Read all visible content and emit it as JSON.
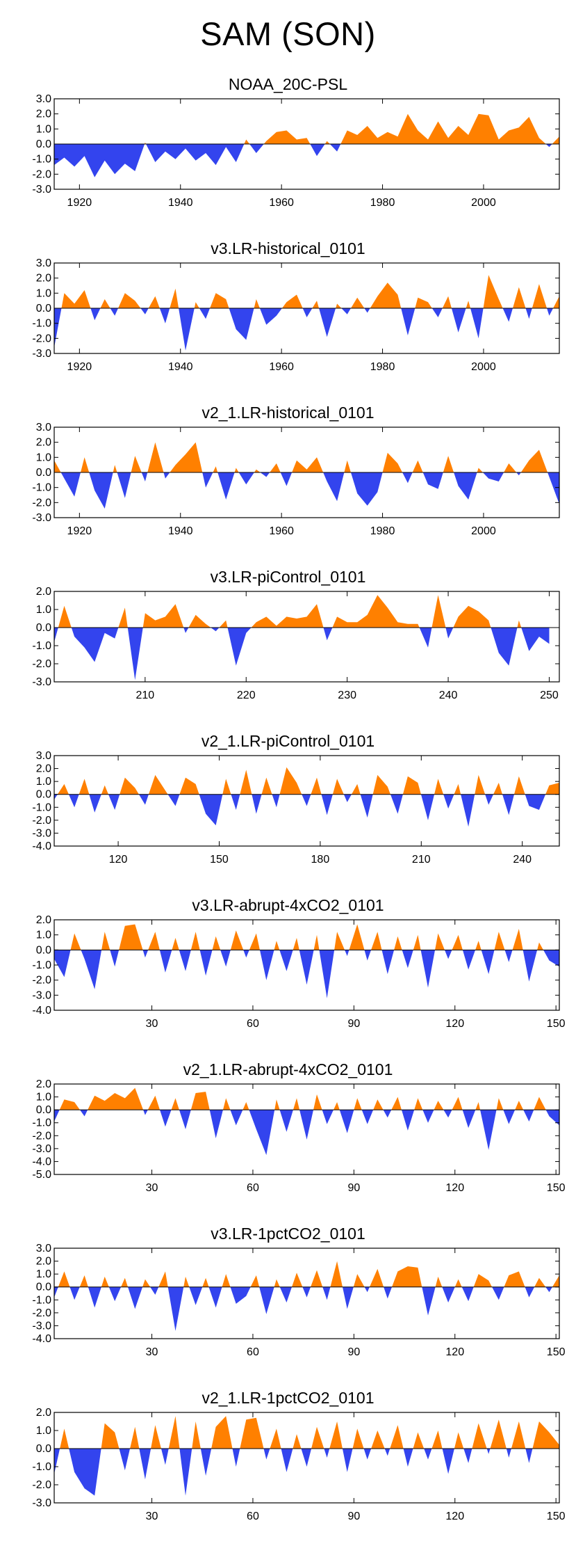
{
  "figure_title": "SAM (SON)",
  "colors": {
    "positive": "#ff8000",
    "negative": "#3344ee",
    "axis": "#000000"
  },
  "chart_data": [
    {
      "type": "area",
      "title": "NOAA_20C-PSL",
      "xlabel": "",
      "ylabel": "",
      "xlim": [
        1915,
        2015
      ],
      "ylim": [
        -3.0,
        3.0
      ],
      "yticks": [
        "3.0",
        "2.0",
        "1.0",
        "0.0",
        "-1.0",
        "-2.0",
        "-3.0"
      ],
      "xticks": [
        1920,
        1940,
        1960,
        1980,
        2000
      ],
      "x": [
        1915,
        1917,
        1919,
        1921,
        1923,
        1925,
        1927,
        1929,
        1931,
        1933,
        1935,
        1937,
        1939,
        1941,
        1943,
        1945,
        1947,
        1949,
        1951,
        1953,
        1955,
        1957,
        1959,
        1961,
        1963,
        1965,
        1967,
        1969,
        1971,
        1973,
        1975,
        1977,
        1979,
        1981,
        1983,
        1985,
        1987,
        1989,
        1991,
        1993,
        1995,
        1997,
        1999,
        2001,
        2003,
        2005,
        2007,
        2009,
        2011,
        2013,
        2015
      ],
      "values": [
        -1.4,
        -0.9,
        -1.5,
        -0.8,
        -2.2,
        -1.1,
        -2.0,
        -1.3,
        -1.8,
        0.1,
        -1.2,
        -0.5,
        -1.0,
        -0.3,
        -1.1,
        -0.6,
        -1.4,
        -0.2,
        -1.2,
        0.3,
        -0.6,
        0.2,
        0.8,
        0.9,
        0.3,
        0.4,
        -0.8,
        0.2,
        -0.5,
        0.9,
        0.6,
        1.2,
        0.4,
        0.8,
        0.5,
        2.0,
        0.9,
        0.3,
        1.5,
        0.4,
        1.2,
        0.6,
        2.0,
        1.9,
        0.3,
        0.9,
        1.1,
        1.8,
        0.4,
        -0.2,
        0.5
      ]
    },
    {
      "type": "area",
      "title": "v3.LR-historical_0101",
      "xlim": [
        1915,
        2015
      ],
      "ylim": [
        -3.0,
        3.0
      ],
      "yticks": [
        "3.0",
        "2.0",
        "1.0",
        "0.0",
        "-1.0",
        "-2.0",
        "-3.0"
      ],
      "xticks": [
        1920,
        1940,
        1960,
        1980,
        2000
      ],
      "x": [
        1915,
        1917,
        1919,
        1921,
        1923,
        1925,
        1927,
        1929,
        1931,
        1933,
        1935,
        1937,
        1939,
        1941,
        1943,
        1945,
        1947,
        1949,
        1951,
        1953,
        1955,
        1957,
        1959,
        1961,
        1963,
        1965,
        1967,
        1969,
        1971,
        1973,
        1975,
        1977,
        1979,
        1981,
        1983,
        1985,
        1987,
        1989,
        1991,
        1993,
        1995,
        1997,
        1999,
        2001,
        2003,
        2005,
        2007,
        2009,
        2011,
        2013,
        2015
      ],
      "values": [
        -2.6,
        1.0,
        0.3,
        1.2,
        -0.8,
        0.6,
        -0.5,
        1.0,
        0.5,
        -0.4,
        0.8,
        -1.0,
        1.3,
        -2.8,
        0.4,
        -0.7,
        1.0,
        0.6,
        -1.4,
        -2.1,
        0.6,
        -1.1,
        -0.5,
        0.4,
        0.9,
        -0.6,
        0.5,
        -1.9,
        0.3,
        -0.4,
        0.7,
        -0.3,
        0.8,
        1.7,
        0.9,
        -1.8,
        0.7,
        0.4,
        -0.6,
        0.8,
        -1.6,
        0.5,
        -2.0,
        2.2,
        0.6,
        -0.9,
        1.4,
        -0.7,
        1.6,
        -0.5,
        0.8
      ]
    },
    {
      "type": "area",
      "title": "v2_1.LR-historical_0101",
      "xlim": [
        1915,
        2015
      ],
      "ylim": [
        -3.0,
        3.0
      ],
      "yticks": [
        "3.0",
        "2.0",
        "1.0",
        "0.0",
        "-1.0",
        "-2.0",
        "-3.0"
      ],
      "xticks": [
        1920,
        1940,
        1960,
        1980,
        2000
      ],
      "x": [
        1915,
        1917,
        1919,
        1921,
        1923,
        1925,
        1927,
        1929,
        1931,
        1933,
        1935,
        1937,
        1939,
        1941,
        1943,
        1945,
        1947,
        1949,
        1951,
        1953,
        1955,
        1957,
        1959,
        1961,
        1963,
        1965,
        1967,
        1969,
        1971,
        1973,
        1975,
        1977,
        1979,
        1981,
        1983,
        1985,
        1987,
        1989,
        1991,
        1993,
        1995,
        1997,
        1999,
        2001,
        2003,
        2005,
        2007,
        2009,
        2011,
        2013,
        2015
      ],
      "values": [
        0.8,
        -0.4,
        -1.6,
        1.0,
        -1.2,
        -2.4,
        0.5,
        -1.7,
        1.1,
        -0.6,
        2.0,
        -0.4,
        0.5,
        1.2,
        2.0,
        -1.0,
        0.4,
        -1.8,
        0.3,
        -0.8,
        0.2,
        -0.3,
        0.6,
        -0.9,
        0.8,
        0.2,
        1.0,
        -0.6,
        -1.9,
        0.8,
        -1.4,
        -2.2,
        -1.3,
        1.3,
        0.6,
        -0.7,
        0.8,
        -0.8,
        -1.1,
        1.1,
        -0.9,
        -1.8,
        0.3,
        -0.4,
        -0.6,
        0.6,
        -0.2,
        0.8,
        1.5,
        -0.3,
        -2.1
      ]
    },
    {
      "type": "area",
      "title": "v3.LR-piControl_0101",
      "xlim": [
        201,
        251
      ],
      "ylim": [
        -3.0,
        2.0
      ],
      "yticks": [
        "2.0",
        "1.0",
        "0.0",
        "-1.0",
        "-2.0",
        "-3.0"
      ],
      "xticks": [
        210,
        220,
        230,
        240,
        250
      ],
      "x": [
        201,
        202,
        203,
        204,
        205,
        206,
        207,
        208,
        209,
        210,
        211,
        212,
        213,
        214,
        215,
        216,
        217,
        218,
        219,
        220,
        221,
        222,
        223,
        224,
        225,
        226,
        227,
        228,
        229,
        230,
        231,
        232,
        233,
        234,
        235,
        236,
        237,
        238,
        239,
        240,
        241,
        242,
        243,
        244,
        245,
        246,
        247,
        248,
        249,
        250
      ],
      "values": [
        -0.8,
        1.2,
        -0.5,
        -1.1,
        -1.9,
        -0.3,
        -0.6,
        1.1,
        -2.9,
        0.8,
        0.4,
        0.6,
        1.3,
        -0.3,
        0.7,
        0.2,
        -0.2,
        0.4,
        -2.1,
        -0.3,
        0.3,
        0.6,
        0.1,
        0.6,
        0.5,
        0.6,
        1.3,
        -0.7,
        0.6,
        0.3,
        0.3,
        0.7,
        1.8,
        1.1,
        0.3,
        0.2,
        0.2,
        -1.1,
        1.8,
        -0.6,
        0.6,
        1.2,
        0.9,
        0.4,
        -1.4,
        -2.1,
        0.4,
        -1.3,
        -0.5,
        -0.9
      ]
    },
    {
      "type": "area",
      "title": "v2_1.LR-piControl_0101",
      "xlim": [
        101,
        251
      ],
      "ylim": [
        -4.0,
        3.0
      ],
      "yticks": [
        "3.0",
        "2.0",
        "1.0",
        "0.0",
        "-1.0",
        "-2.0",
        "-3.0",
        "-4.0"
      ],
      "xticks": [
        120,
        150,
        180,
        210,
        240
      ],
      "x": [
        101,
        104,
        107,
        110,
        113,
        116,
        119,
        122,
        125,
        128,
        131,
        134,
        137,
        140,
        143,
        146,
        149,
        152,
        155,
        158,
        161,
        164,
        167,
        170,
        173,
        176,
        179,
        182,
        185,
        188,
        191,
        194,
        197,
        200,
        203,
        206,
        209,
        212,
        215,
        218,
        221,
        224,
        227,
        230,
        233,
        236,
        239,
        242,
        245,
        248,
        251
      ],
      "values": [
        -0.4,
        0.8,
        -1.0,
        1.2,
        -1.4,
        0.7,
        -1.2,
        1.3,
        0.5,
        -0.8,
        1.5,
        0.3,
        -0.9,
        1.3,
        0.8,
        -1.5,
        -2.4,
        1.2,
        -1.2,
        1.9,
        -1.5,
        1.3,
        -1.0,
        2.1,
        0.9,
        -0.9,
        1.3,
        -1.6,
        1.2,
        -0.6,
        0.8,
        -1.8,
        1.5,
        0.6,
        -1.5,
        1.4,
        0.9,
        -2.0,
        1.2,
        -1.1,
        0.8,
        -2.5,
        1.5,
        -0.8,
        0.9,
        -1.6,
        1.4,
        -0.9,
        -1.2,
        0.7,
        0.9
      ]
    },
    {
      "type": "area",
      "title": "v3.LR-abrupt-4xCO2_0101",
      "xlim": [
        1,
        151
      ],
      "ylim": [
        -4.0,
        2.0
      ],
      "yticks": [
        "2.0",
        "1.0",
        "0.0",
        "-1.0",
        "-2.0",
        "-3.0",
        "-4.0"
      ],
      "xticks": [
        30,
        60,
        90,
        120,
        150
      ],
      "x": [
        1,
        4,
        7,
        10,
        13,
        16,
        19,
        22,
        25,
        28,
        31,
        34,
        37,
        40,
        43,
        46,
        49,
        52,
        55,
        58,
        61,
        64,
        67,
        70,
        73,
        76,
        79,
        82,
        85,
        88,
        91,
        94,
        97,
        100,
        103,
        106,
        109,
        112,
        115,
        118,
        121,
        124,
        127,
        130,
        133,
        136,
        139,
        142,
        145,
        148,
        151
      ],
      "values": [
        -0.6,
        -1.8,
        1.1,
        -0.6,
        -2.6,
        1.2,
        -1.1,
        1.6,
        1.7,
        -0.5,
        1.2,
        -1.5,
        0.8,
        -1.4,
        1.2,
        -1.7,
        0.9,
        -1.1,
        1.3,
        -0.5,
        1.1,
        -2.0,
        0.6,
        -1.4,
        0.8,
        -2.3,
        1.0,
        -3.2,
        1.2,
        -0.4,
        1.7,
        -0.7,
        1.2,
        -1.6,
        0.9,
        -1.2,
        1.0,
        -2.5,
        1.1,
        -0.6,
        1.0,
        -1.3,
        0.6,
        -1.6,
        1.2,
        -0.8,
        1.4,
        -2.1,
        0.5,
        -0.7,
        -1.1
      ]
    },
    {
      "type": "area",
      "title": "v2_1.LR-abrupt-4xCO2_0101",
      "xlim": [
        1,
        151
      ],
      "ylim": [
        -5.0,
        2.0
      ],
      "yticks": [
        "2.0",
        "1.0",
        "0.0",
        "-1.0",
        "-2.0",
        "-3.0",
        "-4.0",
        "-5.0"
      ],
      "xticks": [
        30,
        60,
        90,
        120,
        150
      ],
      "x": [
        1,
        4,
        7,
        10,
        13,
        16,
        19,
        22,
        25,
        28,
        31,
        34,
        37,
        40,
        43,
        46,
        49,
        52,
        55,
        58,
        61,
        64,
        67,
        70,
        73,
        76,
        79,
        82,
        85,
        88,
        91,
        94,
        97,
        100,
        103,
        106,
        109,
        112,
        115,
        118,
        121,
        124,
        127,
        130,
        133,
        136,
        139,
        142,
        145,
        148,
        151
      ],
      "values": [
        -0.9,
        0.8,
        0.6,
        -0.5,
        1.1,
        0.7,
        1.3,
        0.9,
        1.7,
        -0.4,
        1.1,
        -1.3,
        0.9,
        -1.5,
        1.3,
        1.4,
        -2.2,
        0.9,
        -1.2,
        0.6,
        -1.5,
        -3.5,
        0.8,
        -1.7,
        0.9,
        -2.3,
        1.2,
        -1.1,
        0.6,
        -1.8,
        0.9,
        -1.1,
        0.8,
        -0.6,
        1.0,
        -1.6,
        0.9,
        -1.0,
        0.7,
        -0.6,
        1.0,
        -1.4,
        0.6,
        -3.1,
        0.9,
        -1.1,
        0.7,
        -0.9,
        1.0,
        -0.5,
        -1.2
      ]
    },
    {
      "type": "area",
      "title": "v3.LR-1pctCO2_0101",
      "xlim": [
        1,
        151
      ],
      "ylim": [
        -4.0,
        3.0
      ],
      "yticks": [
        "3.0",
        "2.0",
        "1.0",
        "0.0",
        "-1.0",
        "-2.0",
        "-3.0",
        "-4.0"
      ],
      "xticks": [
        30,
        60,
        90,
        120,
        150
      ],
      "x": [
        1,
        4,
        7,
        10,
        13,
        16,
        19,
        22,
        25,
        28,
        31,
        34,
        37,
        40,
        43,
        46,
        49,
        52,
        55,
        58,
        61,
        64,
        67,
        70,
        73,
        76,
        79,
        82,
        85,
        88,
        91,
        94,
        97,
        100,
        103,
        106,
        109,
        112,
        115,
        118,
        121,
        124,
        127,
        130,
        133,
        136,
        139,
        142,
        145,
        148,
        151
      ],
      "values": [
        -0.8,
        1.2,
        -1.0,
        0.9,
        -1.6,
        0.8,
        -1.1,
        0.7,
        -1.7,
        0.6,
        -0.6,
        1.2,
        -3.4,
        0.8,
        -1.4,
        0.7,
        -1.6,
        1.0,
        -1.3,
        -0.7,
        0.9,
        -2.1,
        0.6,
        -1.2,
        1.1,
        -0.8,
        1.3,
        -1.0,
        2.0,
        -1.7,
        1.0,
        -0.4,
        1.4,
        -0.9,
        1.2,
        1.6,
        1.5,
        -2.2,
        0.8,
        -1.2,
        0.6,
        -1.1,
        1.0,
        0.5,
        -1.0,
        0.9,
        1.2,
        -0.8,
        0.7,
        -0.4,
        0.9
      ]
    },
    {
      "type": "area",
      "title": "v2_1.LR-1pctCO2_0101",
      "xlim": [
        1,
        151
      ],
      "ylim": [
        -3.0,
        2.0
      ],
      "yticks": [
        "2.0",
        "1.0",
        "0.0",
        "-1.0",
        "-2.0",
        "-3.0"
      ],
      "xticks": [
        30,
        60,
        90,
        120,
        150
      ],
      "x": [
        1,
        4,
        7,
        10,
        13,
        16,
        19,
        22,
        25,
        28,
        31,
        34,
        37,
        40,
        43,
        46,
        49,
        52,
        55,
        58,
        61,
        64,
        67,
        70,
        73,
        76,
        79,
        82,
        85,
        88,
        91,
        94,
        97,
        100,
        103,
        106,
        109,
        112,
        115,
        118,
        121,
        124,
        127,
        130,
        133,
        136,
        139,
        142,
        145,
        148,
        151
      ],
      "values": [
        -1.4,
        1.1,
        -1.3,
        -2.2,
        -2.6,
        1.4,
        0.9,
        -1.2,
        1.2,
        -1.7,
        1.3,
        -0.9,
        1.8,
        -2.6,
        1.5,
        -1.5,
        1.2,
        1.8,
        -1.0,
        1.6,
        1.7,
        -0.6,
        1.1,
        -1.3,
        0.8,
        -1.0,
        1.2,
        -0.5,
        1.5,
        -1.3,
        1.1,
        -0.6,
        1.0,
        -0.4,
        1.3,
        -1.0,
        0.9,
        -0.6,
        1.0,
        -1.4,
        0.9,
        -0.8,
        1.4,
        -0.3,
        1.6,
        -0.5,
        1.5,
        -0.8,
        1.5,
        0.9,
        0.2
      ]
    }
  ]
}
